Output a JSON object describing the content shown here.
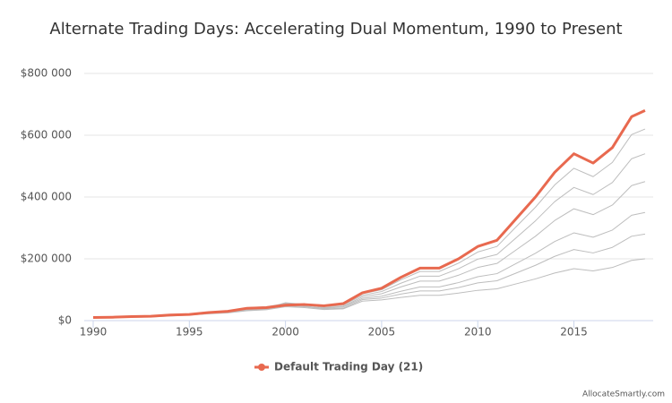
{
  "chart_data": {
    "type": "line",
    "title": "Alternate Trading Days: Accelerating Dual Momentum, 1990 to Present",
    "credit": "AllocateSmartly.com",
    "x": [
      1990,
      1991,
      1992,
      1993,
      1994,
      1995,
      1996,
      1997,
      1998,
      1999,
      2000,
      2001,
      2002,
      2003,
      2004,
      2005,
      2006,
      2007,
      2008,
      2009,
      2010,
      2011,
      2012,
      2013,
      2014,
      2015,
      2016,
      2017,
      2018,
      2018.7
    ],
    "xlim": [
      1990,
      2018.75
    ],
    "xticks": [
      1990,
      1995,
      2000,
      2005,
      2010,
      2015
    ],
    "ylim": [
      0,
      800000
    ],
    "yticks": [
      {
        "value": 0,
        "label": "$0"
      },
      {
        "value": 200000,
        "label": "$200 000"
      },
      {
        "value": 400000,
        "label": "$400 000"
      },
      {
        "value": 600000,
        "label": "$600 000"
      },
      {
        "value": 800000,
        "label": "$800 000"
      }
    ],
    "grid": true,
    "legend": "bottom",
    "series": [
      {
        "color": "#bdbdbd",
        "values": [
          10000,
          11000,
          13000,
          14000,
          18000,
          21000,
          27000,
          31000,
          42000,
          45000,
          55000,
          54000,
          50000,
          56000,
          87000,
          100000,
          132000,
          159000,
          159000,
          186000,
          222000,
          240000,
          304000,
          367000,
          439000,
          493000,
          466000,
          512000,
          602000,
          620000
        ]
      },
      {
        "color": "#bdbdbd",
        "values": [
          10000,
          11000,
          12000,
          14000,
          17000,
          20000,
          25000,
          29000,
          38000,
          41000,
          52000,
          50000,
          45000,
          50000,
          82000,
          94000,
          121000,
          144000,
          144000,
          168000,
          199000,
          214000,
          268000,
          323000,
          385000,
          431000,
          408000,
          447000,
          524000,
          540000
        ]
      },
      {
        "color": "#bdbdbd",
        "values": [
          10000,
          10000,
          12000,
          13000,
          17000,
          19000,
          24000,
          28000,
          36000,
          40000,
          58000,
          52000,
          42000,
          46000,
          77000,
          87000,
          109000,
          128000,
          128000,
          147000,
          172000,
          185000,
          229000,
          273000,
          324000,
          362000,
          343000,
          374000,
          437000,
          450000
        ]
      },
      {
        "color": "#bdbdbd",
        "values": [
          10000,
          11000,
          12000,
          13000,
          16000,
          19000,
          24000,
          27000,
          35000,
          38000,
          50000,
          47000,
          40000,
          44000,
          72000,
          79000,
          95000,
          109000,
          109000,
          123000,
          142000,
          152000,
          185000,
          218000,
          256000,
          284000,
          270000,
          293000,
          341000,
          350000
        ]
      },
      {
        "color": "#bdbdbd",
        "values": [
          10000,
          10000,
          12000,
          13000,
          16000,
          18000,
          23000,
          27000,
          34000,
          37000,
          48000,
          45000,
          38000,
          40000,
          68000,
          73000,
          86000,
          96000,
          96000,
          107000,
          122000,
          129000,
          154000,
          179000,
          208000,
          230000,
          219000,
          237000,
          273000,
          280000
        ]
      },
      {
        "color": "#bdbdbd",
        "values": [
          10000,
          10000,
          11000,
          12000,
          15000,
          18000,
          22000,
          25000,
          32000,
          35000,
          45000,
          42000,
          36000,
          38000,
          63000,
          67000,
          75000,
          82000,
          82000,
          89000,
          98000,
          103000,
          119000,
          135000,
          154000,
          168000,
          161000,
          172000,
          195000,
          200000
        ]
      },
      {
        "name": "Default Trading Day (21)",
        "color": "#e8694f",
        "values": [
          10000,
          11000,
          13000,
          14000,
          18000,
          20000,
          26000,
          30000,
          40000,
          42000,
          50000,
          52000,
          48000,
          55000,
          90000,
          105000,
          140000,
          170000,
          170000,
          200000,
          240000,
          260000,
          330000,
          400000,
          480000,
          540000,
          510000,
          560000,
          660000,
          680000
        ]
      }
    ]
  }
}
